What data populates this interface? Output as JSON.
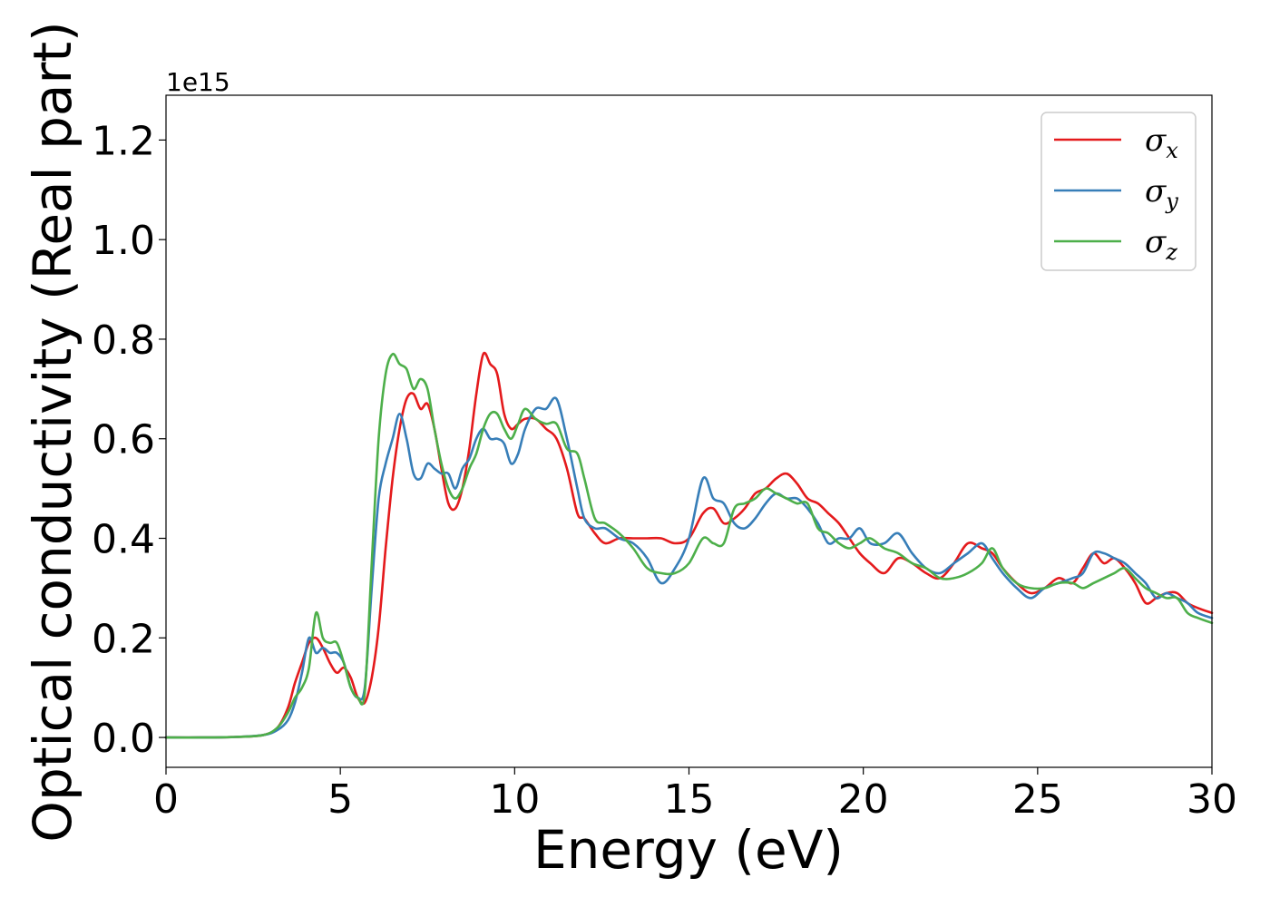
{
  "chart_data": {
    "type": "line",
    "xlabel": "Energy (eV)",
    "ylabel": "Optical conductivity (Real part)",
    "y_offset_text": "1e15",
    "y_scale": 1000000000000000.0,
    "xlim": [
      0,
      30
    ],
    "ylim": [
      -0.06,
      1.29
    ],
    "x_ticks": [
      0,
      5,
      10,
      15,
      20,
      25,
      30
    ],
    "x_tick_labels": [
      "0",
      "5",
      "10",
      "15",
      "20",
      "25",
      "30"
    ],
    "y_ticks": [
      0.0,
      0.2,
      0.4,
      0.6,
      0.8,
      1.0,
      1.2
    ],
    "y_tick_labels": [
      "0.0",
      "0.2",
      "0.4",
      "0.6",
      "0.8",
      "1.0",
      "1.2"
    ],
    "grid": false,
    "legend_position": "top-right",
    "series": [
      {
        "name": "σx",
        "symbol": "σ",
        "subscript": "x",
        "color": "#e41a1c",
        "x": [
          0,
          1,
          2,
          2.8,
          3.2,
          3.5,
          3.7,
          3.9,
          4.1,
          4.3,
          4.5,
          4.7,
          4.9,
          5.1,
          5.3,
          5.5,
          5.7,
          5.9,
          6.1,
          6.3,
          6.5,
          6.7,
          6.9,
          7.1,
          7.3,
          7.5,
          7.7,
          7.9,
          8.1,
          8.3,
          8.5,
          8.7,
          8.9,
          9.1,
          9.3,
          9.5,
          9.7,
          9.9,
          10.1,
          10.3,
          10.6,
          10.9,
          11.2,
          11.5,
          11.8,
          12.0,
          12.3,
          12.6,
          13.0,
          13.4,
          13.8,
          14.2,
          14.6,
          15.0,
          15.4,
          15.7,
          16.0,
          16.3,
          16.6,
          16.9,
          17.2,
          17.5,
          17.8,
          18.1,
          18.4,
          18.7,
          19.0,
          19.3,
          19.6,
          19.9,
          20.2,
          20.6,
          21.0,
          21.4,
          21.8,
          22.2,
          22.6,
          23.0,
          23.4,
          23.7,
          24.0,
          24.4,
          24.8,
          25.2,
          25.6,
          26.0,
          26.3,
          26.6,
          26.9,
          27.2,
          27.5,
          27.8,
          28.1,
          28.4,
          28.7,
          29.0,
          29.3,
          29.6,
          30.0
        ],
        "values": [
          0.0,
          0.0,
          0.001,
          0.005,
          0.02,
          0.06,
          0.11,
          0.15,
          0.19,
          0.2,
          0.18,
          0.15,
          0.13,
          0.14,
          0.12,
          0.08,
          0.07,
          0.12,
          0.22,
          0.38,
          0.52,
          0.62,
          0.68,
          0.69,
          0.66,
          0.67,
          0.62,
          0.54,
          0.47,
          0.46,
          0.5,
          0.58,
          0.69,
          0.77,
          0.75,
          0.73,
          0.65,
          0.62,
          0.63,
          0.64,
          0.64,
          0.62,
          0.6,
          0.54,
          0.45,
          0.44,
          0.41,
          0.39,
          0.4,
          0.4,
          0.4,
          0.4,
          0.39,
          0.4,
          0.45,
          0.46,
          0.43,
          0.44,
          0.46,
          0.49,
          0.5,
          0.52,
          0.53,
          0.51,
          0.48,
          0.47,
          0.45,
          0.43,
          0.4,
          0.37,
          0.35,
          0.33,
          0.36,
          0.35,
          0.33,
          0.32,
          0.35,
          0.39,
          0.38,
          0.37,
          0.34,
          0.31,
          0.29,
          0.3,
          0.32,
          0.31,
          0.34,
          0.37,
          0.35,
          0.36,
          0.34,
          0.31,
          0.27,
          0.28,
          0.29,
          0.29,
          0.27,
          0.26,
          0.25
        ]
      },
      {
        "name": "σy",
        "symbol": "σ",
        "subscript": "y",
        "color": "#377eb8",
        "x": [
          0,
          1,
          2,
          2.8,
          3.2,
          3.5,
          3.7,
          3.9,
          4.1,
          4.3,
          4.5,
          4.7,
          4.9,
          5.1,
          5.3,
          5.5,
          5.7,
          5.9,
          6.1,
          6.3,
          6.5,
          6.7,
          6.9,
          7.1,
          7.3,
          7.5,
          7.7,
          7.9,
          8.1,
          8.3,
          8.5,
          8.7,
          8.9,
          9.1,
          9.3,
          9.5,
          9.7,
          9.9,
          10.1,
          10.3,
          10.6,
          10.9,
          11.2,
          11.5,
          11.8,
          12.0,
          12.3,
          12.6,
          13.0,
          13.4,
          13.8,
          14.2,
          14.6,
          15.0,
          15.4,
          15.7,
          16.0,
          16.3,
          16.6,
          16.9,
          17.2,
          17.5,
          17.8,
          18.1,
          18.4,
          18.7,
          19.0,
          19.3,
          19.6,
          19.9,
          20.2,
          20.6,
          21.0,
          21.4,
          21.8,
          22.2,
          22.6,
          23.0,
          23.4,
          23.7,
          24.0,
          24.4,
          24.8,
          25.2,
          25.6,
          26.0,
          26.3,
          26.6,
          26.9,
          27.2,
          27.5,
          27.8,
          28.1,
          28.4,
          28.7,
          29.0,
          29.3,
          29.6,
          30.0
        ],
        "values": [
          0.0,
          0.0,
          0.001,
          0.005,
          0.015,
          0.035,
          0.07,
          0.13,
          0.2,
          0.17,
          0.18,
          0.17,
          0.17,
          0.15,
          0.1,
          0.08,
          0.1,
          0.3,
          0.48,
          0.55,
          0.6,
          0.65,
          0.6,
          0.53,
          0.52,
          0.55,
          0.54,
          0.53,
          0.53,
          0.5,
          0.54,
          0.56,
          0.6,
          0.62,
          0.6,
          0.6,
          0.59,
          0.55,
          0.57,
          0.62,
          0.66,
          0.66,
          0.68,
          0.6,
          0.5,
          0.44,
          0.42,
          0.42,
          0.4,
          0.39,
          0.36,
          0.31,
          0.34,
          0.4,
          0.52,
          0.48,
          0.47,
          0.43,
          0.42,
          0.44,
          0.47,
          0.49,
          0.48,
          0.48,
          0.46,
          0.43,
          0.39,
          0.4,
          0.4,
          0.42,
          0.39,
          0.39,
          0.41,
          0.37,
          0.34,
          0.33,
          0.35,
          0.37,
          0.39,
          0.36,
          0.33,
          0.3,
          0.28,
          0.3,
          0.31,
          0.32,
          0.33,
          0.37,
          0.37,
          0.36,
          0.35,
          0.33,
          0.31,
          0.28,
          0.29,
          0.28,
          0.27,
          0.25,
          0.24
        ]
      },
      {
        "name": "σz",
        "symbol": "σ",
        "subscript": "z",
        "color": "#4daf4a",
        "x": [
          0,
          1,
          2,
          2.8,
          3.2,
          3.5,
          3.7,
          3.9,
          4.1,
          4.3,
          4.5,
          4.7,
          4.9,
          5.1,
          5.3,
          5.5,
          5.7,
          5.9,
          6.1,
          6.3,
          6.5,
          6.7,
          6.9,
          7.1,
          7.3,
          7.5,
          7.7,
          7.9,
          8.1,
          8.3,
          8.5,
          8.7,
          8.9,
          9.1,
          9.3,
          9.5,
          9.7,
          9.9,
          10.1,
          10.3,
          10.6,
          10.9,
          11.2,
          11.5,
          11.8,
          12.0,
          12.3,
          12.6,
          13.0,
          13.4,
          13.8,
          14.2,
          14.6,
          15.0,
          15.4,
          15.7,
          16.0,
          16.3,
          16.6,
          16.9,
          17.2,
          17.5,
          17.8,
          18.1,
          18.4,
          18.7,
          19.0,
          19.3,
          19.6,
          19.9,
          20.2,
          20.6,
          21.0,
          21.4,
          21.8,
          22.2,
          22.6,
          23.0,
          23.4,
          23.7,
          24.0,
          24.4,
          24.8,
          25.2,
          25.6,
          26.0,
          26.3,
          26.6,
          26.9,
          27.2,
          27.5,
          27.8,
          28.1,
          28.4,
          28.7,
          29.0,
          29.3,
          29.6,
          30.0
        ],
        "values": [
          0.0,
          0.0,
          0.001,
          0.005,
          0.02,
          0.05,
          0.08,
          0.1,
          0.14,
          0.25,
          0.2,
          0.19,
          0.19,
          0.15,
          0.1,
          0.08,
          0.09,
          0.35,
          0.6,
          0.73,
          0.77,
          0.75,
          0.74,
          0.7,
          0.72,
          0.7,
          0.62,
          0.55,
          0.5,
          0.48,
          0.5,
          0.54,
          0.57,
          0.62,
          0.65,
          0.65,
          0.62,
          0.6,
          0.63,
          0.66,
          0.64,
          0.63,
          0.63,
          0.58,
          0.57,
          0.52,
          0.44,
          0.43,
          0.41,
          0.38,
          0.34,
          0.33,
          0.33,
          0.35,
          0.4,
          0.39,
          0.39,
          0.46,
          0.47,
          0.48,
          0.5,
          0.49,
          0.48,
          0.47,
          0.47,
          0.42,
          0.41,
          0.39,
          0.38,
          0.39,
          0.4,
          0.38,
          0.37,
          0.35,
          0.34,
          0.32,
          0.32,
          0.33,
          0.35,
          0.38,
          0.34,
          0.31,
          0.3,
          0.3,
          0.31,
          0.31,
          0.3,
          0.31,
          0.32,
          0.33,
          0.34,
          0.32,
          0.3,
          0.29,
          0.28,
          0.28,
          0.25,
          0.24,
          0.23
        ]
      }
    ]
  }
}
